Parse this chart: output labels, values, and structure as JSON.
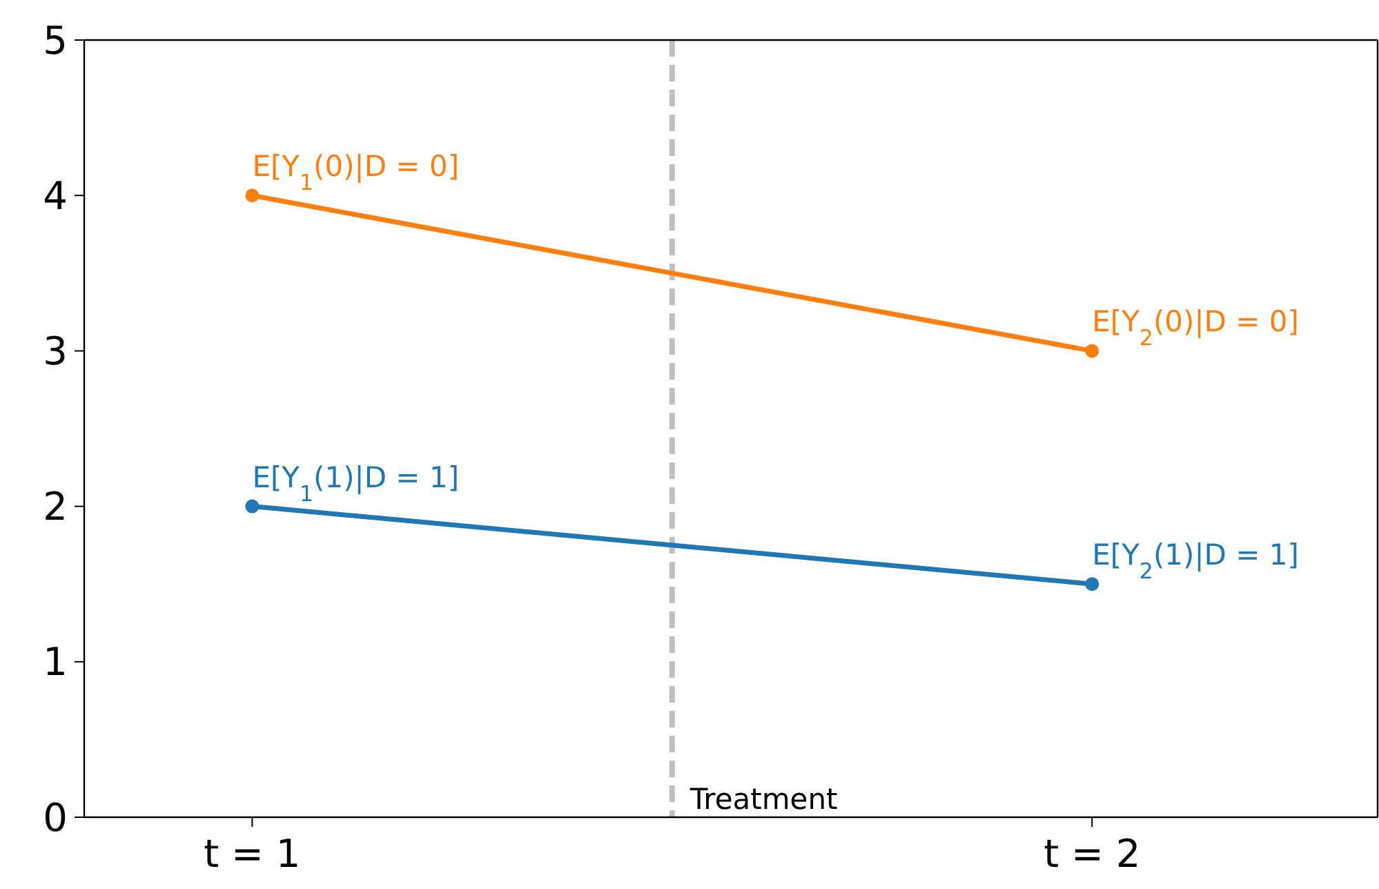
{
  "chart_data": {
    "type": "line",
    "x": [
      1,
      2
    ],
    "series": [
      {
        "color": "#ff7f0e",
        "values": [
          4,
          3
        ],
        "value_labels": [
          "E[Y$_{1}$(0)|D = 0]",
          "E[Y$_{2}$(0)|D = 0]"
        ]
      },
      {
        "color": "#1f77b4",
        "values": [
          2,
          1.5
        ],
        "value_labels": [
          "E[Y$_{1}$(1)|D = 1]",
          "E[Y$_{2}$(1)|D = 1]"
        ]
      }
    ],
    "xlim": [
      0.8,
      2.34
    ],
    "xticks": [
      {
        "value": 1,
        "label": "t = 1"
      },
      {
        "value": 2,
        "label": "t = 2"
      }
    ],
    "ylim": [
      0,
      5
    ],
    "yticks": [
      0,
      1,
      2,
      3,
      4,
      5
    ],
    "marker": "circle",
    "line_style": "solid",
    "ref_lines": [
      {
        "axis": "x",
        "value": 1.5,
        "label": "Treatment",
        "color": "#c0c0c0",
        "line_style": "dashed"
      }
    ]
  }
}
